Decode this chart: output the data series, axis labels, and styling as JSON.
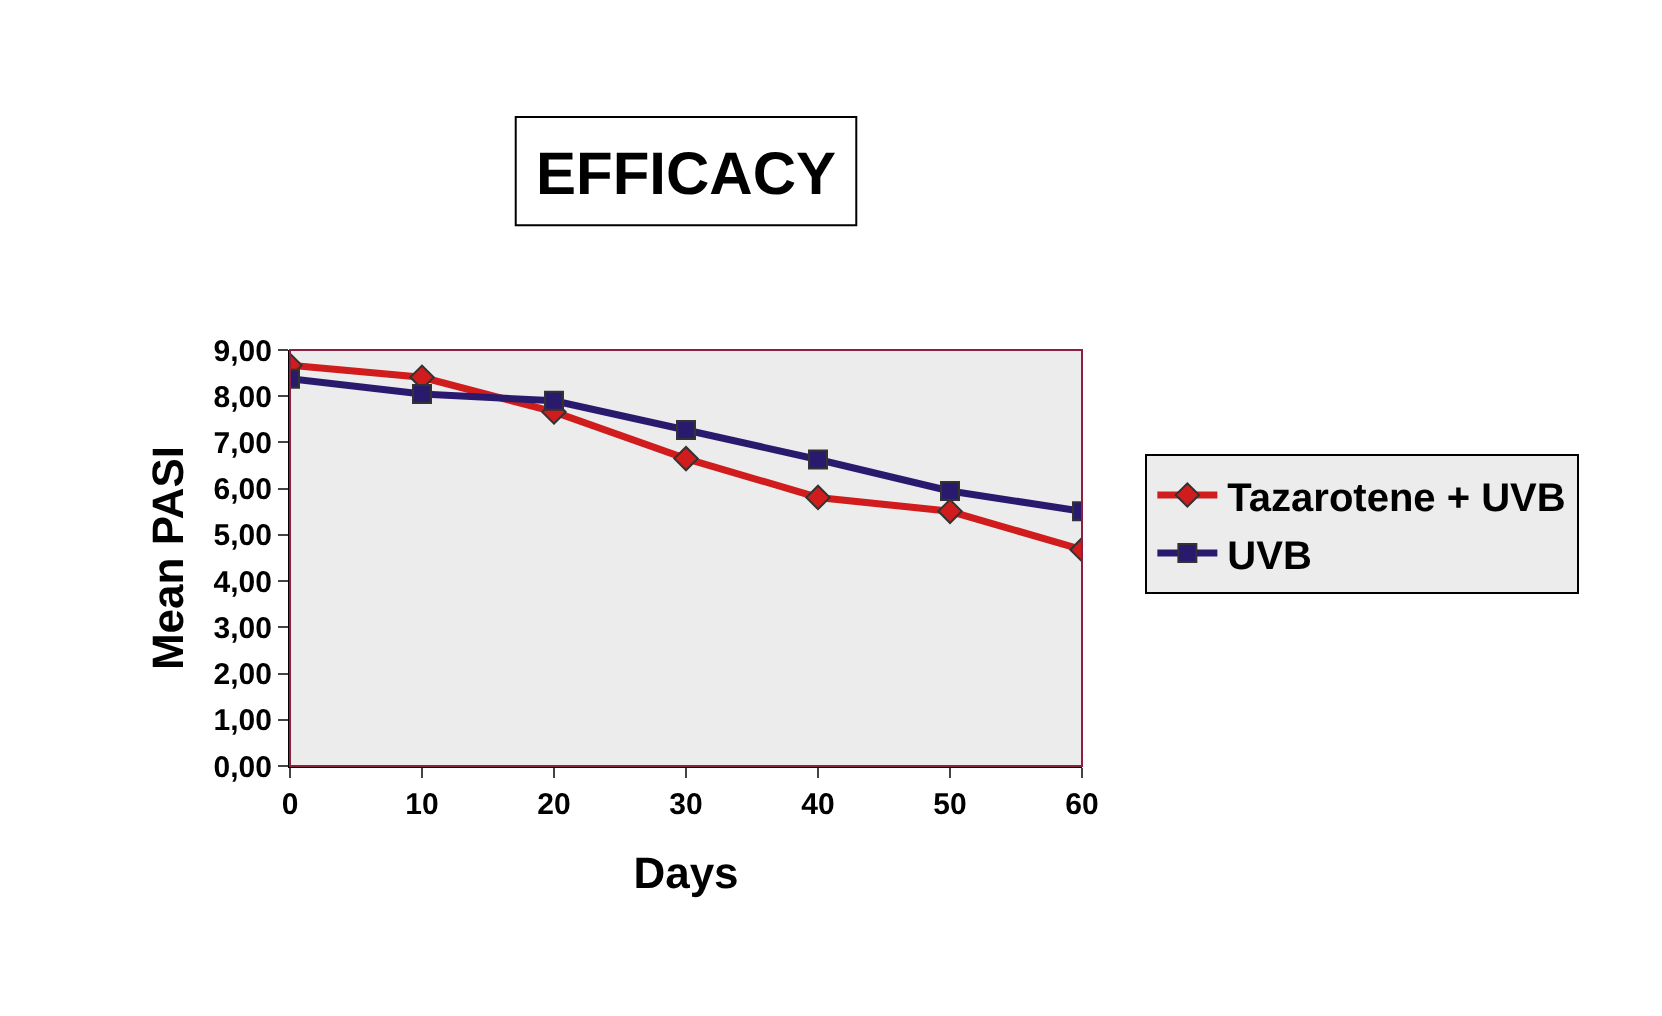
{
  "chart_data": {
    "type": "line",
    "title": "EFFICACY",
    "xlabel": "Days",
    "ylabel": "Mean PASI",
    "x": [
      0,
      10,
      20,
      30,
      40,
      50,
      60
    ],
    "series": [
      {
        "name": "Tazarotene + UVB",
        "color": "#d01c1c",
        "marker": "diamond",
        "values": [
          8.67,
          8.41,
          7.66,
          6.65,
          5.81,
          5.51,
          4.68
        ]
      },
      {
        "name": "UVB",
        "color": "#2a1a6e",
        "marker": "square",
        "values": [
          8.38,
          8.05,
          7.9,
          7.27,
          6.63,
          5.95,
          5.51
        ]
      }
    ],
    "xlim": [
      0,
      60
    ],
    "xticks": [
      0,
      10,
      20,
      30,
      40,
      50,
      60
    ],
    "ylim": [
      0,
      9
    ],
    "yticks": [
      {
        "value": 0,
        "label": "0,00"
      },
      {
        "value": 1,
        "label": "1,00"
      },
      {
        "value": 2,
        "label": "2,00"
      },
      {
        "value": 3,
        "label": "3,00"
      },
      {
        "value": 4,
        "label": "4,00"
      },
      {
        "value": 5,
        "label": "5,00"
      },
      {
        "value": 6,
        "label": "6,00"
      },
      {
        "value": 7,
        "label": "7,00"
      },
      {
        "value": 8,
        "label": "8,00"
      },
      {
        "value": 9,
        "label": "9,00"
      }
    ],
    "grid": false,
    "legend": "right",
    "line_style": "solid"
  }
}
